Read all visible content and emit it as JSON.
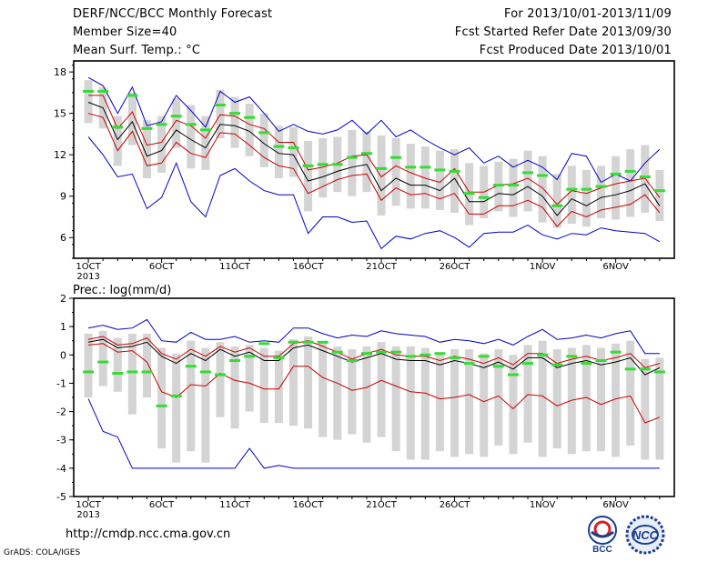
{
  "header": {
    "title": "DERF/NCC/BCC Monthly Forecast",
    "member_size": "Member Size=40",
    "variable": "Mean Surf. Temp.: °C",
    "period": "For 2013/10/01-2013/11/09",
    "fcst_started": "Fcst Started Refer Date 2013/09/30",
    "fcst_produced": "Fcst Produced Date 2013/10/01"
  },
  "footer": {
    "url": "http://cmdp.ncc.cma.gov.cn",
    "credit": "GrADS: COLA/IGES",
    "logo_left_text": "BCC",
    "logo_right_text": "NCC"
  },
  "colors": {
    "max_min": "#0000cc",
    "plus_minus_std": "#cc0000",
    "mean": "#000000",
    "observed": "#33dd33",
    "spread_bar": "#d4d4d4"
  },
  "chart_data": [
    {
      "type": "line",
      "title": "",
      "ylabel": "",
      "ylim": [
        4.5,
        18.8
      ],
      "yticks": [
        6,
        9,
        12,
        15,
        18
      ],
      "x": [
        1,
        2,
        3,
        4,
        5,
        6,
        7,
        8,
        9,
        10,
        11,
        12,
        13,
        14,
        15,
        16,
        17,
        18,
        19,
        20,
        21,
        22,
        23,
        24,
        25,
        26,
        27,
        28,
        29,
        30,
        31,
        32,
        33,
        34,
        35,
        36,
        37,
        38,
        39,
        40
      ],
      "xlim": [
        0,
        41
      ],
      "xtick_positions": [
        1,
        6,
        11,
        16,
        21,
        26,
        32,
        37
      ],
      "xtick_labels": [
        "1OCT",
        "6OCT",
        "11OCT",
        "16OCT",
        "21OCT",
        "26OCT",
        "1NOV",
        "6NOV"
      ],
      "year_label": "2013",
      "grid": false,
      "series": [
        {
          "role": "max",
          "values": [
            17.6,
            17.0,
            15.0,
            16.9,
            14.1,
            14.4,
            16.3,
            15.2,
            14.0,
            16.6,
            15.8,
            16.2,
            15.0,
            13.7,
            14.2,
            13.7,
            13.5,
            13.8,
            14.5,
            13.5,
            14.5,
            13.3,
            13.8,
            13.1,
            12.5,
            12.0,
            12.5,
            11.4,
            11.9,
            11.1,
            11.6,
            11.1,
            10.2,
            12.1,
            11.9,
            10.0,
            10.6,
            10.1,
            11.4,
            12.4
          ]
        },
        {
          "role": "plus_std",
          "values": [
            16.3,
            16.3,
            13.9,
            15.1,
            12.7,
            12.9,
            14.5,
            14.1,
            13.2,
            14.9,
            14.8,
            14.2,
            13.9,
            12.9,
            12.9,
            10.9,
            11.1,
            11.4,
            11.9,
            12.0,
            10.4,
            11.2,
            10.7,
            10.3,
            10.0,
            11.0,
            9.3,
            9.3,
            9.8,
            9.9,
            10.3,
            9.6,
            8.4,
            9.4,
            9.2,
            9.6,
            9.9,
            10.1,
            10.3,
            8.9
          ]
        },
        {
          "role": "mean",
          "values": [
            15.8,
            15.4,
            13.1,
            14.4,
            11.9,
            12.3,
            13.8,
            13.1,
            12.5,
            14.2,
            14.1,
            13.7,
            12.8,
            12.1,
            12.0,
            10.1,
            10.4,
            10.8,
            11.1,
            11.3,
            9.4,
            10.3,
            9.8,
            9.8,
            9.4,
            10.3,
            8.6,
            8.6,
            9.2,
            9.1,
            9.7,
            9.0,
            7.6,
            8.8,
            8.3,
            8.9,
            9.1,
            9.4,
            9.9,
            8.3
          ]
        },
        {
          "role": "minus_std",
          "values": [
            15.0,
            14.7,
            12.3,
            13.7,
            11.2,
            11.4,
            12.9,
            12.1,
            11.8,
            13.6,
            13.5,
            12.7,
            11.8,
            11.2,
            11.0,
            9.2,
            9.7,
            10.2,
            10.5,
            10.6,
            8.7,
            9.6,
            9.1,
            9.2,
            8.8,
            9.2,
            7.7,
            7.7,
            8.3,
            8.3,
            8.7,
            8.2,
            6.8,
            7.9,
            7.5,
            8.0,
            8.2,
            8.4,
            9.1,
            7.8
          ]
        },
        {
          "role": "min",
          "values": [
            13.3,
            12.0,
            10.4,
            10.6,
            8.1,
            8.9,
            11.4,
            8.6,
            7.5,
            10.5,
            11.0,
            10.1,
            9.4,
            9.1,
            9.1,
            6.3,
            7.5,
            7.5,
            7.1,
            7.2,
            5.2,
            6.1,
            5.9,
            6.3,
            6.5,
            6.0,
            5.3,
            6.3,
            6.4,
            6.4,
            6.9,
            6.2,
            5.9,
            6.3,
            6.2,
            6.7,
            6.5,
            6.4,
            6.3,
            5.7
          ]
        },
        {
          "role": "observed",
          "values": [
            16.6,
            16.6,
            14.0,
            16.3,
            13.9,
            14.2,
            14.8,
            14.2,
            13.8,
            15.6,
            15.0,
            14.7,
            13.6,
            12.6,
            12.5,
            11.2,
            11.3,
            11.3,
            11.8,
            12.1,
            11.0,
            11.8,
            11.1,
            11.1,
            10.9,
            10.8,
            9.2,
            8.9,
            9.8,
            9.8,
            10.7,
            10.5,
            8.3,
            9.5,
            9.5,
            9.7,
            10.6,
            10.8,
            10.4,
            9.4
          ]
        },
        {
          "role": "spread_upper",
          "values": [
            17.4,
            16.9,
            14.8,
            16.5,
            14.5,
            14.8,
            16.1,
            15.6,
            14.8,
            16.7,
            16.2,
            15.7,
            15.0,
            14.1,
            14.0,
            13.0,
            13.2,
            13.3,
            13.8,
            13.7,
            13.4,
            13.2,
            12.8,
            12.6,
            12.3,
            12.4,
            11.4,
            11.2,
            11.5,
            11.7,
            12.3,
            11.9,
            10.6,
            11.2,
            10.9,
            11.2,
            11.9,
            12.4,
            12.7,
            10.9
          ]
        },
        {
          "role": "spread_lower",
          "values": [
            14.3,
            13.9,
            11.2,
            12.7,
            10.3,
            10.7,
            12.5,
            11.0,
            10.9,
            13.2,
            12.5,
            11.9,
            11.1,
            10.3,
            10.4,
            7.9,
            8.9,
            9.3,
            9.0,
            9.3,
            7.6,
            8.3,
            8.1,
            8.1,
            8.0,
            7.8,
            6.9,
            7.4,
            7.9,
            7.5,
            7.9,
            7.1,
            6.7,
            7.0,
            6.8,
            7.4,
            7.3,
            7.5,
            7.8,
            7.2
          ]
        }
      ]
    },
    {
      "type": "line",
      "title": "Prec.: log(mm/d)",
      "ylabel": "",
      "ylim": [
        -5,
        2
      ],
      "yticks": [
        -5,
        -4,
        -3,
        -2,
        -1,
        0,
        1,
        2
      ],
      "x": [
        1,
        2,
        3,
        4,
        5,
        6,
        7,
        8,
        9,
        10,
        11,
        12,
        13,
        14,
        15,
        16,
        17,
        18,
        19,
        20,
        21,
        22,
        23,
        24,
        25,
        26,
        27,
        28,
        29,
        30,
        31,
        32,
        33,
        34,
        35,
        36,
        37,
        38,
        39,
        40
      ],
      "xlim": [
        0,
        41
      ],
      "xtick_positions": [
        1,
        6,
        11,
        16,
        21,
        26,
        32,
        37
      ],
      "xtick_labels": [
        "1OCT",
        "6OCT",
        "11OCT",
        "16OCT",
        "21OCT",
        "26OCT",
        "1NOV",
        "6NOV"
      ],
      "year_label": "2013",
      "grid": false,
      "series": [
        {
          "role": "max",
          "values": [
            0.95,
            1.05,
            0.9,
            0.95,
            1.25,
            0.5,
            0.45,
            0.8,
            0.55,
            0.55,
            0.65,
            0.45,
            0.5,
            0.45,
            0.95,
            0.95,
            0.75,
            0.6,
            0.7,
            0.65,
            0.85,
            0.75,
            0.7,
            0.65,
            0.45,
            0.55,
            0.5,
            0.4,
            0.55,
            0.35,
            0.65,
            0.9,
            0.55,
            0.6,
            0.7,
            0.6,
            0.75,
            0.85,
            0.05,
            0.05
          ]
        },
        {
          "role": "plus_std",
          "values": [
            0.55,
            0.65,
            0.35,
            0.4,
            0.6,
            0.05,
            -0.15,
            0.2,
            -0.05,
            0.3,
            0.1,
            0.25,
            -0.05,
            -0.05,
            0.4,
            0.5,
            0.3,
            0.1,
            -0.15,
            0.05,
            0.2,
            0.0,
            -0.05,
            -0.05,
            -0.2,
            -0.05,
            -0.15,
            -0.3,
            -0.1,
            -0.35,
            0.05,
            0.05,
            -0.3,
            -0.15,
            -0.05,
            -0.2,
            -0.1,
            0.05,
            -0.45,
            -0.3
          ]
        },
        {
          "role": "mean",
          "values": [
            0.45,
            0.55,
            0.25,
            0.3,
            0.45,
            -0.05,
            -0.3,
            0.05,
            -0.2,
            0.2,
            -0.05,
            0.1,
            -0.2,
            -0.2,
            0.25,
            0.35,
            0.15,
            -0.05,
            -0.25,
            -0.1,
            0.05,
            -0.15,
            -0.2,
            -0.2,
            -0.35,
            -0.2,
            -0.3,
            -0.45,
            -0.25,
            -0.5,
            -0.1,
            -0.1,
            -0.45,
            -0.3,
            -0.2,
            -0.35,
            -0.25,
            -0.1,
            -0.7,
            -0.45
          ]
        },
        {
          "role": "minus_std",
          "values": [
            0.35,
            0.4,
            0.1,
            0.15,
            -0.25,
            -1.3,
            -1.5,
            -1.05,
            -1.1,
            -0.65,
            -0.9,
            -1.0,
            -1.2,
            -1.2,
            -0.4,
            -0.4,
            -0.8,
            -1.0,
            -1.25,
            -1.15,
            -0.9,
            -1.1,
            -1.3,
            -1.35,
            -1.55,
            -1.5,
            -1.4,
            -1.65,
            -1.45,
            -1.9,
            -1.4,
            -1.45,
            -1.8,
            -1.6,
            -1.5,
            -1.75,
            -1.55,
            -1.45,
            -2.4,
            -2.2
          ]
        },
        {
          "role": "min",
          "values": [
            -1.55,
            -2.7,
            -2.9,
            -4.0,
            -4.0,
            -4.0,
            -4.0,
            -4.0,
            -4.0,
            -4.0,
            -4.0,
            -3.3,
            -4.0,
            -3.9,
            -4.0,
            -4.0,
            -4.0,
            -4.0,
            -4.0,
            -4.0,
            -4.0,
            -4.0,
            -4.0,
            -4.0,
            -4.0,
            -4.0,
            -4.0,
            -4.0,
            -4.0,
            -4.0,
            -4.0,
            -4.0,
            -4.0,
            -4.0,
            -4.0,
            -4.0,
            -4.0,
            -4.0,
            -4.0,
            -4.0
          ]
        },
        {
          "role": "observed",
          "values": [
            -0.6,
            -0.25,
            -0.65,
            -0.6,
            -0.6,
            -1.8,
            -1.45,
            -0.4,
            -0.6,
            -0.7,
            -0.2,
            -0.05,
            0.4,
            -0.1,
            0.45,
            0.45,
            0.45,
            0.1,
            -0.2,
            0.05,
            0.1,
            0.1,
            -0.05,
            0.0,
            0.05,
            -0.1,
            -0.3,
            -0.05,
            -0.4,
            -0.7,
            -0.3,
            0.0,
            -0.35,
            -0.05,
            -0.3,
            -0.2,
            0.1,
            -0.5,
            -0.5,
            -0.6
          ]
        },
        {
          "role": "spread_upper",
          "values": [
            0.75,
            0.85,
            0.6,
            0.75,
            0.75,
            0.25,
            0.05,
            0.5,
            0.25,
            0.45,
            0.3,
            0.35,
            0.25,
            0.15,
            0.55,
            0.65,
            0.45,
            0.3,
            0.2,
            0.3,
            0.45,
            0.3,
            0.3,
            0.25,
            0.05,
            0.2,
            0.2,
            0.05,
            0.2,
            0.0,
            0.35,
            0.5,
            0.2,
            0.25,
            0.35,
            0.25,
            0.4,
            0.5,
            -0.15,
            -0.1
          ]
        },
        {
          "role": "spread_lower",
          "values": [
            -1.5,
            -1.1,
            -1.3,
            -2.1,
            -1.5,
            -3.3,
            -3.8,
            -3.4,
            -3.8,
            -2.2,
            -2.6,
            -2.0,
            -2.4,
            -2.4,
            -2.5,
            -2.6,
            -2.9,
            -3.0,
            -2.8,
            -3.1,
            -2.9,
            -3.4,
            -3.7,
            -3.7,
            -3.4,
            -3.6,
            -3.5,
            -3.6,
            -3.2,
            -3.5,
            -3.1,
            -3.6,
            -3.3,
            -3.5,
            -3.4,
            -3.4,
            -3.6,
            -3.2,
            -3.7,
            -3.7
          ]
        }
      ]
    }
  ]
}
